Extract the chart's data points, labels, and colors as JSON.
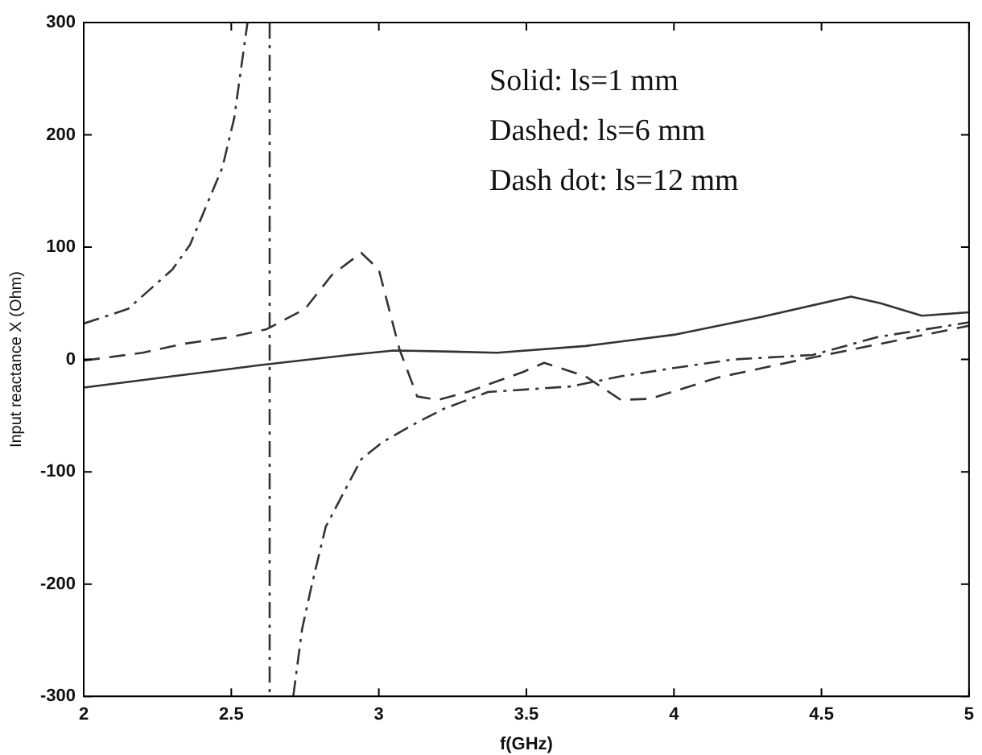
{
  "chart_data": {
    "type": "line",
    "xlabel": "f(GHz)",
    "ylabel": "Input reactance X (Ohm)",
    "xlim": [
      2,
      5
    ],
    "xticks": [
      2,
      2.5,
      3,
      3.5,
      4,
      4.5,
      5
    ],
    "ylim": [
      -300,
      300
    ],
    "yticks": [
      -300,
      -200,
      -100,
      0,
      100,
      200,
      300
    ],
    "grid": false,
    "legend": false,
    "marker": "none",
    "annotations": [
      "Solid: ls=1 mm",
      "Dashed: ls=6 mm",
      "Dash dot: ls=12 mm"
    ],
    "series": [
      {
        "line_style": "solid",
        "color": "#333333",
        "x": [
          2,
          2.3,
          2.6,
          2.9,
          3.05,
          3.25,
          3.4,
          3.7,
          4.0,
          4.3,
          4.6,
          4.7,
          4.84,
          5
        ],
        "values": [
          -25,
          -15,
          -5,
          4,
          8,
          7,
          6,
          12,
          22,
          38,
          56,
          50,
          39,
          42
        ]
      },
      {
        "line_style": "dashed",
        "color": "#333333",
        "x": [
          2,
          2.2,
          2.34,
          2.5,
          2.62,
          2.75,
          2.84,
          2.94,
          3.0,
          3.07,
          3.13,
          3.2,
          3.3,
          3.49,
          3.56,
          3.7,
          3.82,
          3.92,
          4.15,
          4.4,
          4.7,
          5
        ],
        "values": [
          -1,
          6,
          14,
          20,
          27,
          45,
          75,
          95,
          80,
          9,
          -33,
          -36,
          -29,
          -11,
          -3,
          -15,
          -36,
          -35,
          -16,
          -2,
          14,
          30
        ]
      },
      {
        "line_style": "dashdot",
        "color": "#333333",
        "x": [
          2,
          2.15,
          2.3,
          2.36,
          2.47,
          2.51,
          2.54,
          2.555,
          2.6,
          2.63,
          2.63,
          2.67,
          2.71,
          2.74,
          2.77,
          2.82,
          2.87,
          2.94,
          3.01,
          3.13,
          3.22,
          3.37,
          3.54,
          3.65,
          3.82,
          3.99,
          4.2,
          4.47,
          4.69,
          5
        ],
        "values": [
          32,
          45,
          80,
          102,
          171,
          215,
          272,
          300,
          null,
          300,
          -300,
          null,
          -300,
          -240,
          -204,
          -149,
          -124,
          -89,
          -74,
          -56,
          -44,
          -29,
          -26,
          -24,
          -15,
          -8,
          0,
          4,
          20,
          33
        ]
      }
    ]
  }
}
